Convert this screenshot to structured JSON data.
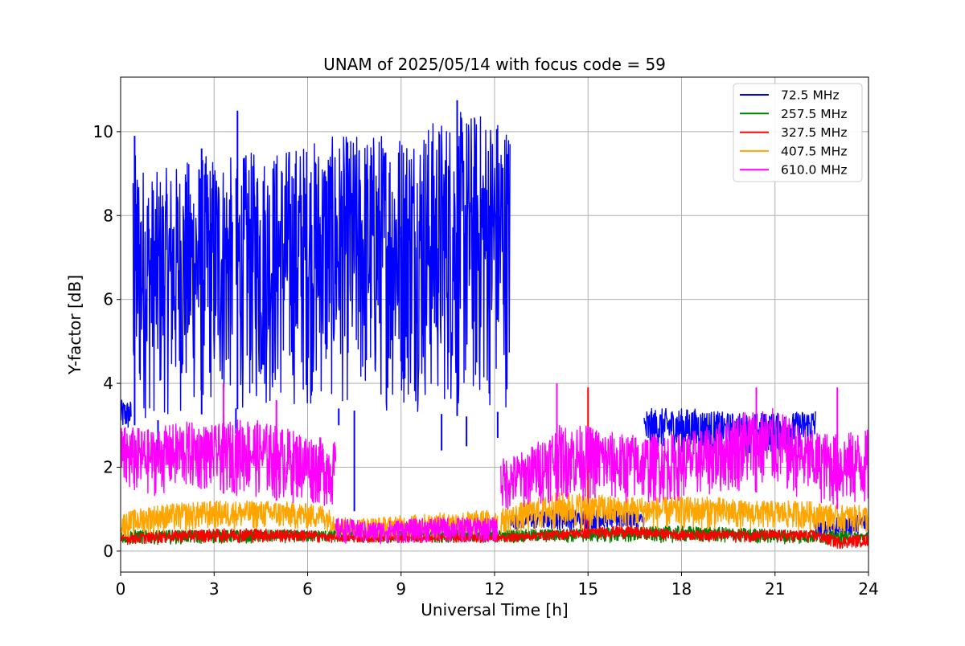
{
  "chart_data": {
    "type": "line",
    "title": "UNAM of 2025/05/14 with focus code = 59",
    "xlabel": "Universal Time [h]",
    "ylabel": "Y-factor [dB]",
    "xlim": [
      0,
      24
    ],
    "ylim": [
      -0.5,
      11.3
    ],
    "xticks": [
      0,
      3,
      6,
      9,
      12,
      15,
      18,
      21,
      24
    ],
    "yticks": [
      0,
      2,
      4,
      6,
      8,
      10
    ],
    "grid": true,
    "legend_position": "top-right",
    "series": [
      {
        "name": " 72.5 MHz",
        "color": "#0000ff",
        "segments": [
          {
            "x": [
              0,
              0.35
            ],
            "low": [
              2.8,
              2.8
            ],
            "high": [
              3.6,
              3.6
            ]
          },
          {
            "x": [
              0.4,
              0.5,
              1.0,
              2.0,
              3.0,
              3.6
            ],
            "low": [
              3.0,
              3.0,
              3.1,
              3.2,
              3.3,
              3.4
            ],
            "high": [
              9.7,
              9.5,
              9.0,
              9.3,
              9.5,
              9.4
            ]
          },
          {
            "x": [
              3.7,
              4.0,
              5.0,
              6.0,
              7.0,
              8.0,
              9.0,
              10.0,
              11.0,
              12.0,
              12.5
            ],
            "low": [
              3.4,
              3.3,
              3.3,
              3.4,
              3.4,
              3.3,
              3.3,
              3.3,
              3.2,
              3.3,
              3.4
            ],
            "high": [
              9.2,
              9.5,
              9.6,
              9.8,
              9.9,
              10.0,
              10.1,
              10.3,
              10.5,
              10.5,
              10.2
            ]
          },
          {
            "x": [
              12.5,
              13.0,
              14.0,
              15.0,
              16.0,
              16.8
            ],
            "low": [
              0.5,
              0.5,
              0.5,
              0.5,
              0.5,
              0.5
            ],
            "high": [
              0.9,
              0.9,
              1.0,
              1.0,
              1.0,
              0.9
            ]
          },
          {
            "x": [
              16.8,
              17.5,
              18.5,
              19.5,
              20.5,
              21.5,
              22.3
            ],
            "low": [
              2.2,
              2.4,
              2.3,
              2.2,
              2.3,
              2.4,
              2.5
            ],
            "high": [
              3.4,
              3.4,
              3.4,
              3.3,
              3.3,
              3.3,
              3.4
            ]
          },
          {
            "x": [
              22.3,
              23.0,
              24.0
            ],
            "low": [
              0.3,
              0.3,
              0.4
            ],
            "high": [
              0.7,
              0.8,
              0.9
            ]
          }
        ],
        "spikes": [
          {
            "x": 3.7,
            "y": 2.8
          },
          {
            "x": 3.75,
            "y": 10.5
          },
          {
            "x": 7.5,
            "y": 0.95
          },
          {
            "x": 7.0,
            "y": 3.0
          },
          {
            "x": 10.3,
            "y": 2.4
          },
          {
            "x": 11.1,
            "y": 2.5
          },
          {
            "x": 12.1,
            "y": 2.7
          },
          {
            "x": 10.8,
            "y": 10.75
          },
          {
            "x": 0.45,
            "y": 9.9
          },
          {
            "x": 1.2,
            "y": 2.4
          },
          {
            "x": 2.6,
            "y": 9.6
          }
        ]
      },
      {
        "name": "257.5 MHz",
        "color": "#008000",
        "segments": [
          {
            "x": [
              0,
              6,
              6.9,
              12.1,
              12.2,
              18,
              24
            ],
            "low": [
              0.15,
              0.2,
              0.2,
              0.2,
              0.2,
              0.2,
              0.15
            ],
            "high": [
              0.5,
              0.5,
              0.5,
              0.5,
              0.5,
              0.6,
              0.45
            ]
          }
        ]
      },
      {
        "name": "327.5 MHz",
        "color": "#ff0000",
        "segments": [
          {
            "x": [
              0,
              2,
              4,
              6,
              6.9,
              12.1,
              12.2,
              15,
              16,
              18,
              21,
              22.3,
              23,
              24
            ],
            "low": [
              0.15,
              0.2,
              0.2,
              0.2,
              0.2,
              0.2,
              0.2,
              0.3,
              0.3,
              0.25,
              0.2,
              0.2,
              0.05,
              0.1
            ],
            "high": [
              0.4,
              0.5,
              0.55,
              0.5,
              0.4,
              0.4,
              0.4,
              0.55,
              0.6,
              0.5,
              0.5,
              0.5,
              0.35,
              0.4
            ]
          }
        ],
        "spikes": [
          {
            "x": 15.0,
            "y": 3.9
          },
          {
            "x": 14.9,
            "y": 1.2
          }
        ]
      },
      {
        "name": "407.5 MHz",
        "color": "#ffa500",
        "segments": [
          {
            "x": [
              0,
              1,
              3,
              5,
              6.5,
              6.9
            ],
            "low": [
              0.3,
              0.4,
              0.5,
              0.5,
              0.5,
              0.4
            ],
            "high": [
              0.9,
              1.1,
              1.2,
              1.2,
              1.1,
              0.9
            ]
          },
          {
            "x": [
              6.9,
              8,
              10,
              12.1
            ],
            "low": [
              0.3,
              0.3,
              0.3,
              0.35
            ],
            "high": [
              0.8,
              0.8,
              0.9,
              1.0
            ]
          },
          {
            "x": [
              12.2,
              13,
              14,
              15,
              16,
              17,
              18,
              19,
              20,
              21,
              22,
              23,
              24
            ],
            "low": [
              0.4,
              0.4,
              0.5,
              0.5,
              0.5,
              0.5,
              0.5,
              0.5,
              0.5,
              0.5,
              0.5,
              0.4,
              0.4
            ],
            "high": [
              1.0,
              1.2,
              1.4,
              1.4,
              1.3,
              1.3,
              1.3,
              1.3,
              1.2,
              1.2,
              1.2,
              1.1,
              1.1
            ]
          }
        ]
      },
      {
        "name": "610.0 MHz",
        "color": "#ff00ff",
        "segments": [
          {
            "x": [
              0,
              1,
              2,
              3,
              4,
              5,
              6,
              6.9
            ],
            "low": [
              1.2,
              1.3,
              1.4,
              1.4,
              1.3,
              1.2,
              1.1,
              1.0
            ],
            "high": [
              3.0,
              2.9,
              3.1,
              3.0,
              3.2,
              3.0,
              2.8,
              2.6
            ]
          },
          {
            "x": [
              6.9,
              8,
              10,
              12.1
            ],
            "low": [
              0.2,
              0.15,
              0.2,
              0.2
            ],
            "high": [
              0.8,
              0.7,
              0.8,
              0.8
            ]
          },
          {
            "x": [
              12.2,
              13,
              14,
              15,
              16,
              17,
              18,
              19,
              20,
              21,
              22,
              23,
              24
            ],
            "low": [
              0.9,
              1.0,
              1.2,
              1.2,
              1.1,
              1.1,
              1.2,
              1.3,
              1.4,
              1.4,
              1.2,
              1.0,
              1.0
            ],
            "high": [
              2.2,
              2.4,
              3.0,
              3.0,
              2.8,
              2.8,
              2.8,
              3.0,
              3.4,
              3.4,
              2.9,
              2.8,
              2.9
            ]
          }
        ],
        "spikes": [
          {
            "x": 14.0,
            "y": 4.0
          },
          {
            "x": 20.4,
            "y": 3.9
          },
          {
            "x": 23.0,
            "y": 3.9
          },
          {
            "x": 3.3,
            "y": 4.0
          },
          {
            "x": 5.0,
            "y": 3.6
          }
        ]
      }
    ]
  }
}
